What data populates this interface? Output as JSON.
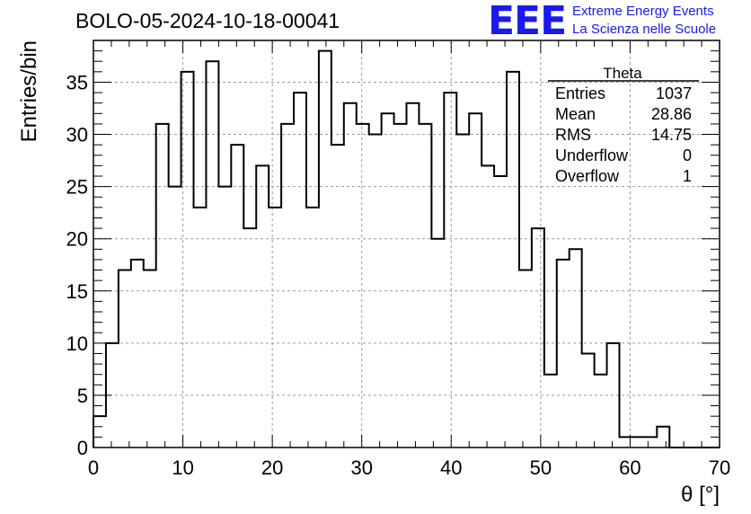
{
  "title": "BOLO-05-2024-10-18-00041",
  "logo": {
    "mark": "EEE",
    "line1": "Extreme Energy Events",
    "line2": "La Scienza nelle Scuole",
    "color": "#1a1aee"
  },
  "stats_box": {
    "header": "Theta",
    "rows": [
      {
        "label": "Entries",
        "value": "1037"
      },
      {
        "label": "Mean",
        "value": "28.86"
      },
      {
        "label": "RMS",
        "value": "14.75"
      },
      {
        "label": "Underflow",
        "value": "0"
      },
      {
        "label": "Overflow",
        "value": "1"
      }
    ]
  },
  "chart_data": {
    "type": "bar",
    "style": "step-histogram",
    "title": "BOLO-05-2024-10-18-00041",
    "xlabel": "θ [°]",
    "ylabel": "Entries/bin",
    "xlim": [
      0,
      70
    ],
    "ylim": [
      0,
      39
    ],
    "grid": true,
    "bin_width": 1.4,
    "bin_start": 0,
    "values": [
      3,
      10,
      17,
      18,
      17,
      31,
      25,
      36,
      23,
      37,
      25,
      29,
      21,
      27,
      23,
      31,
      34,
      23,
      38,
      29,
      33,
      31,
      30,
      32,
      31,
      33,
      31,
      20,
      34,
      30,
      32,
      27,
      26,
      36,
      17,
      21,
      7,
      18,
      19,
      9,
      7,
      10,
      1,
      1,
      1,
      2,
      0,
      0,
      0,
      0
    ],
    "x_ticks": [
      "0",
      "10",
      "20",
      "30",
      "40",
      "50",
      "60",
      "70"
    ],
    "y_ticks": [
      "0",
      "5",
      "10",
      "15",
      "20",
      "25",
      "30",
      "35"
    ]
  }
}
